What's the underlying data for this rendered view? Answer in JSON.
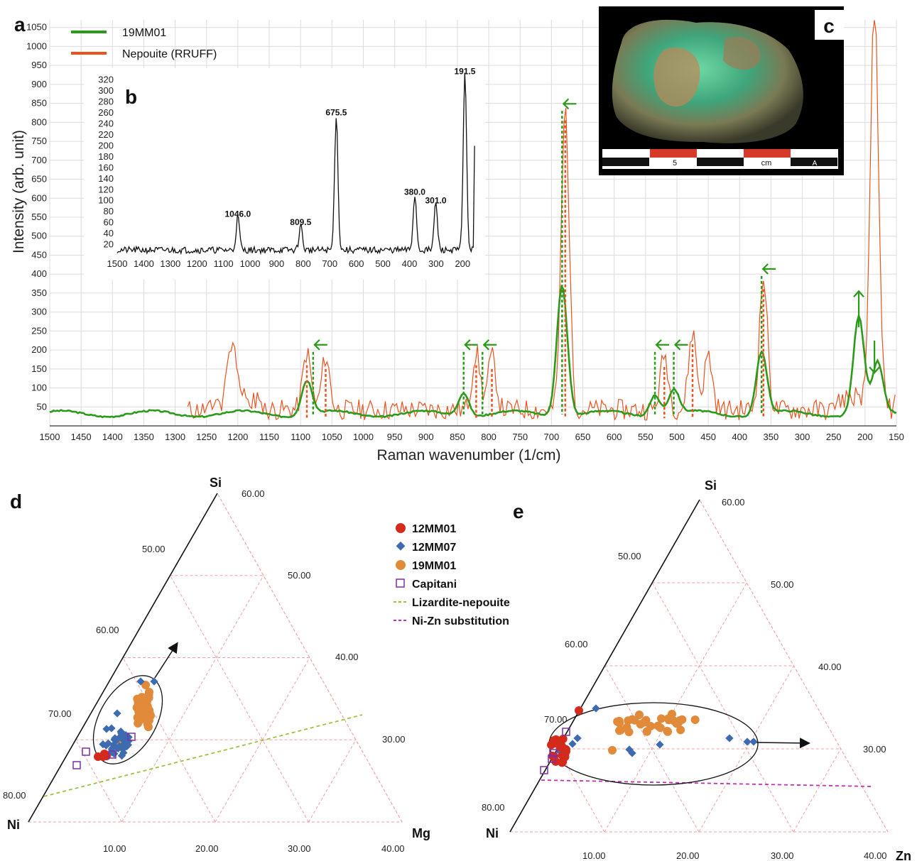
{
  "panel_labels": {
    "a": "a",
    "b": "b",
    "c": "c",
    "d": "d",
    "e": "e"
  },
  "colors": {
    "sample": "#2b9a1a",
    "reference": "#e8531e",
    "grid": "#d9d9d9",
    "red": "#d42a1c",
    "blue": "#3e6bb0",
    "orange": "#e08a3a",
    "purple": "#7b2fa8",
    "lizardite": "#9ac43a",
    "nizn": "#c030b0",
    "ternary_grid": "#f0a0a0"
  },
  "chart_data": [
    {
      "type": "line",
      "panel": "a",
      "xlabel": "Raman wavenumber (1/cm)",
      "ylabel": "Intensity (arb. unit)",
      "xlim": [
        1500,
        150
      ],
      "ylim": [
        0,
        1070
      ],
      "x_ticks": [
        "1500",
        "1450",
        "1400",
        "1350",
        "1300",
        "1250",
        "1200",
        "1150",
        "1100",
        "1050",
        "1000",
        "950",
        "900",
        "850",
        "800",
        "750",
        "700",
        "650",
        "600",
        "550",
        "500",
        "450",
        "400",
        "350",
        "300",
        "250",
        "200",
        "150"
      ],
      "y_ticks": [
        "50",
        "100",
        "150",
        "200",
        "250",
        "300",
        "350",
        "400",
        "450",
        "500",
        "550",
        "600",
        "650",
        "700",
        "750",
        "800",
        "850",
        "900",
        "950",
        "1000",
        "1050"
      ],
      "grid": true,
      "legend_position": "top-left",
      "series": [
        {
          "name": "19MM01",
          "color": "#2b9a1a",
          "peaks": [
            [
              1090,
              90
            ],
            [
              840,
              62
            ],
            [
              683,
              345
            ],
            [
              535,
              55
            ],
            [
              505,
              65
            ],
            [
              365,
              165
            ],
            [
              210,
              255
            ],
            [
              180,
              130
            ]
          ],
          "arrows": [
            [
              1080,
              "left"
            ],
            [
              840,
              "left"
            ],
            [
              810,
              "left"
            ],
            [
              535,
              "left"
            ],
            [
              505,
              "left"
            ],
            [
              365,
              "left"
            ],
            [
              683,
              "left"
            ],
            [
              210,
              "up"
            ],
            [
              185,
              "down"
            ]
          ]
        },
        {
          "name": "Nepouite (RRUFF)",
          "color": "#e8531e",
          "peaks": [
            [
              1210,
              160
            ],
            [
              1090,
              150
            ],
            [
              1060,
              140
            ],
            [
              820,
              150
            ],
            [
              795,
              140
            ],
            [
              678,
              795
            ],
            [
              520,
              145
            ],
            [
              475,
              205
            ],
            [
              450,
              145
            ],
            [
              362,
              350
            ],
            [
              185,
              1070
            ]
          ]
        }
      ]
    },
    {
      "type": "line",
      "panel": "b",
      "xlim": [
        1500,
        150
      ],
      "ylim": [
        0,
        330
      ],
      "x_ticks": [
        "1500",
        "1400",
        "1300",
        "1200",
        "1100",
        "1000",
        "900",
        "800",
        "700",
        "600",
        "500",
        "400",
        "300",
        "200"
      ],
      "y_ticks": [
        "20",
        "40",
        "60",
        "80",
        "100",
        "120",
        "140",
        "160",
        "180",
        "200",
        "220",
        "240",
        "260",
        "280",
        "300",
        "320"
      ],
      "peak_labels": [
        {
          "x": 1046.0,
          "y": 60,
          "label": "1046.0"
        },
        {
          "x": 809.5,
          "y": 45,
          "label": "809.5"
        },
        {
          "x": 675.5,
          "y": 245,
          "label": "675.5"
        },
        {
          "x": 380.0,
          "y": 100,
          "label": "380.0"
        },
        {
          "x": 301.0,
          "y": 85,
          "label": "301.0"
        },
        {
          "x": 191.5,
          "y": 320,
          "label": "191.5"
        }
      ]
    },
    {
      "type": "scatter",
      "panel": "d",
      "corners": {
        "top": "Si",
        "left": "Ni",
        "right": "Mg"
      },
      "left_ticks": [
        "60.00",
        "70.00",
        "80.00"
      ],
      "inner_ticks": [
        "50.00",
        "60.00",
        "70.00"
      ],
      "right_ticks": [
        "50.00",
        "40.00",
        "30.00"
      ],
      "bottom_ticks": [
        "10.00",
        "20.00",
        "30.00",
        "40.00"
      ],
      "series": [
        {
          "name": "12MM01",
          "marker": "circle",
          "color": "#d42a1c"
        },
        {
          "name": "12MM07",
          "marker": "diamond",
          "color": "#3e6bb0"
        },
        {
          "name": "19MM01",
          "marker": "circle",
          "color": "#e08a3a"
        },
        {
          "name": "Capitani",
          "marker": "open-square",
          "color": "#7b2fa8"
        },
        {
          "name": "Lizardite-nepouite",
          "marker": "dashed-line",
          "color": "#9ac43a"
        },
        {
          "name": "Ni-Zn substitution",
          "marker": "dashed-line",
          "color": "#c030b0"
        }
      ]
    },
    {
      "type": "scatter",
      "panel": "e",
      "corners": {
        "top": "Si",
        "left": "Ni",
        "right": "Zn"
      },
      "left_ticks": [
        "60.00",
        "70.00",
        "80.00"
      ],
      "inner_ticks": [
        "50.00",
        "60.00",
        "70.00"
      ],
      "right_ticks": [
        "50.00",
        "40.00",
        "30.00"
      ],
      "bottom_ticks": [
        "10.00",
        "20.00",
        "30.00",
        "40.00"
      ]
    }
  ],
  "photo": {
    "scale_label": "5",
    "scale_unit": "cm",
    "scale_mark": "A"
  }
}
